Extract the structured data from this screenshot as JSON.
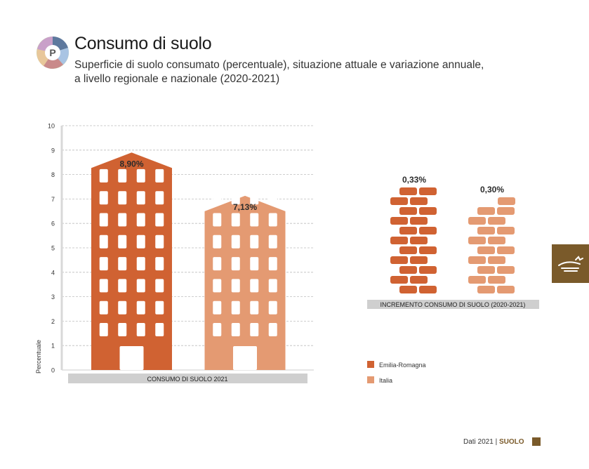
{
  "header": {
    "title": "Consumo di suolo",
    "subtitle_line1": "Superficie di suolo consumato (percentuale), situazione attuale e variazione annuale,",
    "subtitle_line2": "a livello regionale e nazionale (2020-2021)",
    "logo_letter": "P"
  },
  "colors": {
    "emilia": "#d06232",
    "italia": "#e49a72",
    "grid": "#bdbdbd",
    "band": "#cfcfcf",
    "brand": "#7a5a2a"
  },
  "chart_data": [
    {
      "type": "bar",
      "ylabel": "Percentuale",
      "xlabel": "CONSUMO DI SUOLO 2021",
      "ylim": [
        0,
        10
      ],
      "yticks": [
        0,
        1,
        2,
        3,
        4,
        5,
        6,
        7,
        8,
        9,
        10
      ],
      "categories": [
        "Emilia-Romagna",
        "Italia"
      ],
      "values": [
        8.9,
        7.13
      ],
      "labels": [
        "8,90%",
        "7,13%"
      ]
    },
    {
      "type": "bar",
      "xlabel": "INCREMENTO CONSUMO DI SUOLO (2020-2021)",
      "categories": [
        "Emilia-Romagna",
        "Italia"
      ],
      "values": [
        0.33,
        0.3
      ],
      "labels": [
        "0,33%",
        "0,30%"
      ]
    }
  ],
  "legend": [
    {
      "label": "Emilia-Romagna",
      "color": "#d06232"
    },
    {
      "label": "Italia",
      "color": "#e49a72"
    }
  ],
  "footer": {
    "text": "Dati 2021 |",
    "section": "SUOLO"
  }
}
